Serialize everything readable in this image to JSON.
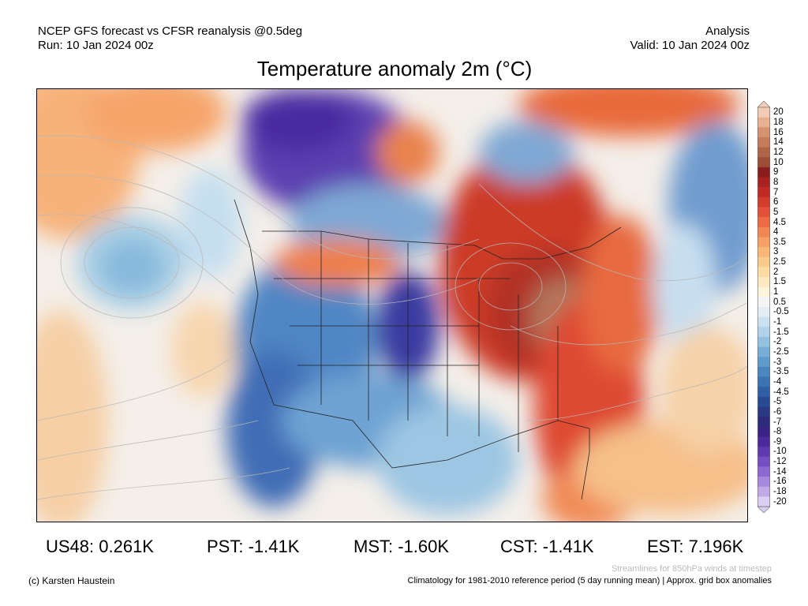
{
  "header": {
    "line1_left": "NCEP GFS forecast vs CFSR reanalysis @0.5deg",
    "line2_left": "Run: 10 Jan 2024 00z",
    "line1_right": "Analysis",
    "line2_right": "Valid: 10 Jan 2024 00z"
  },
  "title": "Temperature anomaly 2m (°C)",
  "colorbar": {
    "labels": [
      "20",
      "18",
      "16",
      "14",
      "12",
      "10",
      "9",
      "8",
      "7",
      "6",
      "5",
      "4.5",
      "4",
      "3.5",
      "3",
      "2.5",
      "2",
      "1.5",
      "1",
      "0.5",
      "-0.5",
      "-1",
      "-1.5",
      "-2",
      "-2.5",
      "-3",
      "-3.5",
      "-4",
      "-4.5",
      "-5",
      "-6",
      "-7",
      "-8",
      "-9",
      "-10",
      "-12",
      "-14",
      "-16",
      "-18",
      "-20"
    ],
    "colors": [
      "#f4cbb6",
      "#e8b092",
      "#d59372",
      "#c47b5a",
      "#b06447",
      "#9b4d36",
      "#8a1d1d",
      "#a82222",
      "#c22a26",
      "#d63a2c",
      "#e4513a",
      "#ec6a44",
      "#f18653",
      "#f5a064",
      "#f8b777",
      "#fbcb8c",
      "#fcdca2",
      "#fde9bd",
      "#fef4da",
      "#f5f5f5",
      "#e3eef6",
      "#cbe2f0",
      "#b0d2e8",
      "#93c1e0",
      "#78aed6",
      "#5f9bcb",
      "#4a86bf",
      "#3a72b2",
      "#2f5ea4",
      "#284b94",
      "#2a3a85",
      "#2e2a7a",
      "#3a2184",
      "#4c2a99",
      "#6038b0",
      "#7550c2",
      "#8d6ad0",
      "#a688dc",
      "#c2aae7",
      "#dcd0f2"
    ]
  },
  "stats": {
    "us48": "US48: 0.261K",
    "pst": "PST: -1.41K",
    "mst": "MST: -1.60K",
    "cst": "CST: -1.41K",
    "est": "EST: 7.196K"
  },
  "footer": {
    "credit": "(c) Karsten Haustein",
    "streamlines_note": "Streamlines for 850hPa winds at timestep",
    "climatology_note": "Climatology for 1981-2010 reference period (5 day running mean) | Approx. grid box anomalies"
  }
}
